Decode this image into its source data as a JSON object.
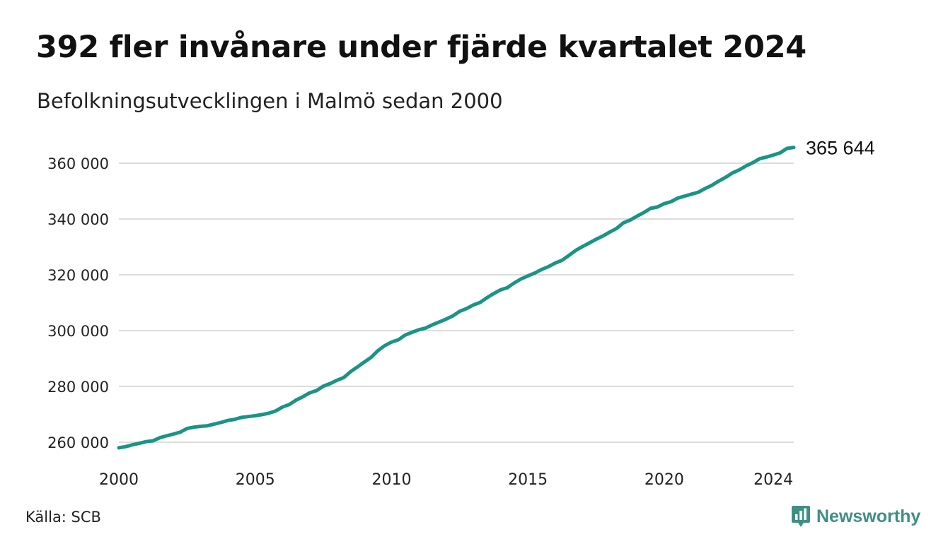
{
  "title": "392 fler invånare under fjärde kvartalet 2024",
  "subtitle": "Befolkningsutvecklingen i Malmö sedan 2000",
  "source": "Källa: SCB",
  "brand": {
    "name": "Newsworthy",
    "color": "#3f8f84"
  },
  "chart_data": {
    "type": "line",
    "title": "392 fler invånare under fjärde kvartalet 2024",
    "subtitle": "Befolkningsutvecklingen i Malmö sedan 2000",
    "xlabel": "",
    "ylabel": "",
    "xlim": [
      2000,
      2024.75
    ],
    "ylim": [
      256000,
      367000
    ],
    "x_ticks": [
      2000,
      2005,
      2010,
      2015,
      2020,
      2024
    ],
    "x_tick_labels": [
      "2000",
      "2005",
      "2010",
      "2015",
      "2020",
      "2024"
    ],
    "y_ticks": [
      260000,
      280000,
      300000,
      320000,
      340000,
      360000
    ],
    "y_tick_labels": [
      "260 000",
      "280 000",
      "300 000",
      "320 000",
      "340 000",
      "360 000"
    ],
    "grid": "horizontal",
    "line_color": "#1a9485",
    "end_label": "365 644",
    "series": [
      {
        "x": [
          2000,
          2000.25,
          2000.5,
          2000.75,
          2001,
          2001.25,
          2001.5,
          2001.75,
          2002,
          2002.25,
          2002.5,
          2002.75,
          2003,
          2003.25,
          2003.5,
          2003.75,
          2004,
          2004.25,
          2004.5,
          2004.75,
          2005,
          2005.25,
          2005.5,
          2005.75,
          2006,
          2006.25,
          2006.5,
          2006.75,
          2007,
          2007.25,
          2007.5,
          2007.75,
          2008,
          2008.25,
          2008.5,
          2008.75,
          2009,
          2009.25,
          2009.5,
          2009.75,
          2010,
          2010.25,
          2010.5,
          2010.75,
          2011,
          2011.25,
          2011.5,
          2011.75,
          2012,
          2012.25,
          2012.5,
          2012.75,
          2013,
          2013.25,
          2013.5,
          2013.75,
          2014,
          2014.25,
          2014.5,
          2014.75,
          2015,
          2015.25,
          2015.5,
          2015.75,
          2016,
          2016.25,
          2016.5,
          2016.75,
          2017,
          2017.25,
          2017.5,
          2017.75,
          2018,
          2018.25,
          2018.5,
          2018.75,
          2019,
          2019.25,
          2019.5,
          2019.75,
          2020,
          2020.25,
          2020.5,
          2020.75,
          2021,
          2021.25,
          2021.5,
          2021.75,
          2022,
          2022.25,
          2022.5,
          2022.75,
          2023,
          2023.25,
          2023.5,
          2023.75,
          2024,
          2024.25,
          2024.5,
          2024.75
        ],
        "values": [
          258000,
          258400,
          259100,
          259600,
          260200,
          260500,
          261600,
          262300,
          262900,
          263600,
          264900,
          265400,
          265700,
          265900,
          266500,
          267100,
          267800,
          268200,
          268900,
          269200,
          269500,
          269900,
          270400,
          271200,
          272600,
          273500,
          275100,
          276300,
          277700,
          278500,
          280100,
          281000,
          282200,
          283200,
          285300,
          287000,
          288700,
          290400,
          292800,
          294600,
          295900,
          296700,
          298400,
          299400,
          300300,
          300900,
          302100,
          303100,
          304100,
          305300,
          306900,
          307900,
          309200,
          310100,
          311800,
          313300,
          314600,
          315400,
          317100,
          318500,
          319600,
          320600,
          321900,
          322900,
          324200,
          325200,
          326900,
          328700,
          330100,
          331400,
          332700,
          333900,
          335300,
          336600,
          338600,
          339600,
          341000,
          342300,
          343800,
          344300,
          345500,
          346200,
          347500,
          348200,
          348900,
          349600,
          350900,
          352100,
          353600,
          354900,
          356500,
          357600,
          359000,
          360200,
          361600,
          362200,
          362900,
          363700,
          365300,
          365644
        ]
      }
    ]
  }
}
